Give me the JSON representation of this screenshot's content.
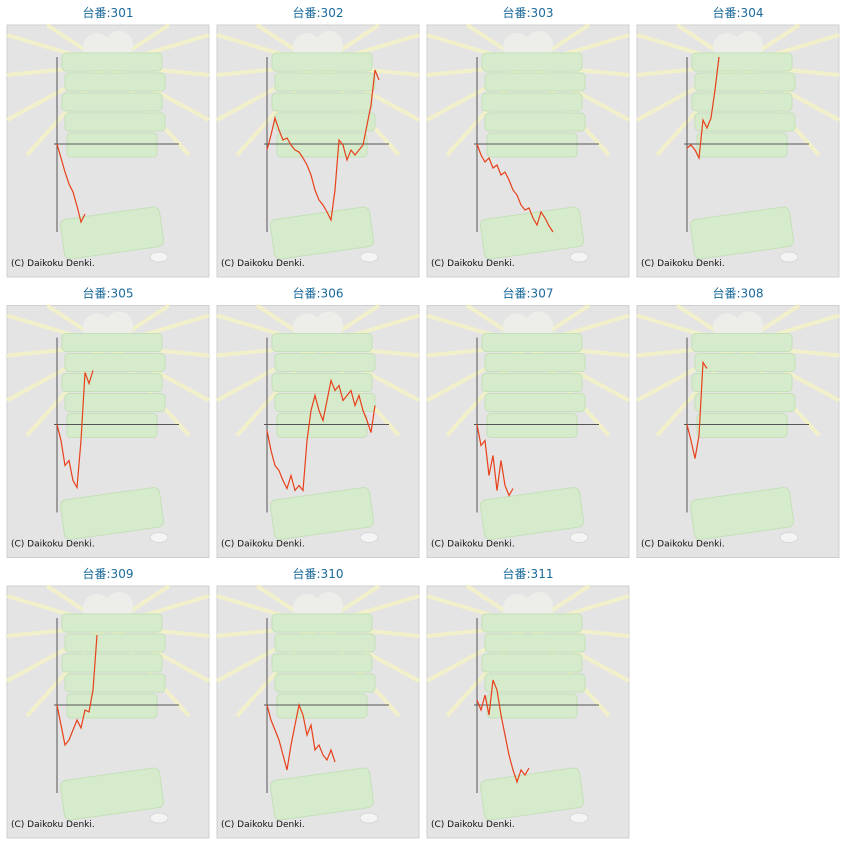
{
  "chart_data": [
    {
      "type": "line",
      "title": "台番:301",
      "footer": "(C) Daikoku Denki.",
      "color": "#e8401a",
      "ylim": [
        -88,
        88
      ],
      "values": [
        0,
        -14,
        -28,
        -40,
        -48,
        -62,
        -78,
        -70
      ]
    },
    {
      "type": "line",
      "title": "台番:302",
      "footer": "(C) Daikoku Denki.",
      "color": "#e8401a",
      "ylim": [
        -88,
        88
      ],
      "values": [
        -6,
        9,
        26,
        14,
        4,
        6,
        -1,
        -6,
        -8,
        -14,
        -21,
        -31,
        -46,
        -56,
        -61,
        -68,
        -76,
        -46,
        4,
        -1,
        -16,
        -6,
        -11,
        -6,
        -1,
        19,
        39,
        74,
        64
      ]
    },
    {
      "type": "line",
      "title": "台番:303",
      "footer": "(C) Daikoku Denki.",
      "color": "#e8401a",
      "ylim": [
        -88,
        88
      ],
      "values": [
        0,
        -11,
        -18,
        -14,
        -24,
        -21,
        -31,
        -28,
        -36,
        -46,
        -51,
        -61,
        -66,
        -64,
        -74,
        -81,
        -68,
        -74,
        -82,
        -88
      ]
    },
    {
      "type": "line",
      "title": "台番:304",
      "footer": "(C) Daikoku Denki.",
      "color": "#e8401a",
      "ylim": [
        -88,
        88
      ],
      "values": [
        -4,
        -1,
        -6,
        -14,
        24,
        16,
        26,
        54,
        87
      ]
    },
    {
      "type": "line",
      "title": "台番:305",
      "footer": "(C) Daikoku Denki.",
      "color": "#e8401a",
      "ylim": [
        -88,
        88
      ],
      "values": [
        0,
        -16,
        -41,
        -36,
        -56,
        -63,
        -16,
        52,
        41,
        54
      ]
    },
    {
      "type": "line",
      "title": "台番:306",
      "footer": "(C) Daikoku Denki.",
      "color": "#e8401a",
      "ylim": [
        -88,
        88
      ],
      "values": [
        -6,
        -26,
        -41,
        -46,
        -56,
        -64,
        -51,
        -66,
        -61,
        -66,
        -16,
        14,
        29,
        14,
        4,
        24,
        44,
        34,
        39,
        24,
        29,
        34,
        19,
        29,
        14,
        4,
        -8,
        19
      ]
    },
    {
      "type": "line",
      "title": "台番:307",
      "footer": "(C) Daikoku Denki.",
      "color": "#e8401a",
      "ylim": [
        -88,
        88
      ],
      "values": [
        0,
        -21,
        -16,
        -51,
        -31,
        -66,
        -36,
        -61,
        -71,
        -64
      ]
    },
    {
      "type": "line",
      "title": "台番:308",
      "footer": "(C) Daikoku Denki.",
      "color": "#e8401a",
      "ylim": [
        -88,
        88
      ],
      "values": [
        0,
        -16,
        -34,
        -11,
        62,
        56
      ]
    },
    {
      "type": "line",
      "title": "台番:309",
      "footer": "(C) Daikoku Denki.",
      "color": "#e8401a",
      "ylim": [
        -88,
        88
      ],
      "values": [
        0,
        -20,
        -40,
        -35,
        -25,
        -15,
        -23,
        -5,
        -7,
        15,
        70
      ]
    },
    {
      "type": "line",
      "title": "台番:310",
      "footer": "(C) Daikoku Denki.",
      "color": "#e8401a",
      "ylim": [
        -88,
        88
      ],
      "values": [
        0,
        -15,
        -25,
        -35,
        -50,
        -65,
        -40,
        -20,
        0,
        -10,
        -30,
        -20,
        -45,
        -40,
        -50,
        -55,
        -45,
        -57
      ]
    },
    {
      "type": "line",
      "title": "台番:311",
      "footer": "(C) Daikoku Denki.",
      "color": "#e8401a",
      "ylim": [
        -88,
        88
      ],
      "values": [
        5,
        -5,
        10,
        -10,
        25,
        15,
        -10,
        -30,
        -50,
        -65,
        -77,
        -65,
        -70,
        -63
      ]
    }
  ]
}
